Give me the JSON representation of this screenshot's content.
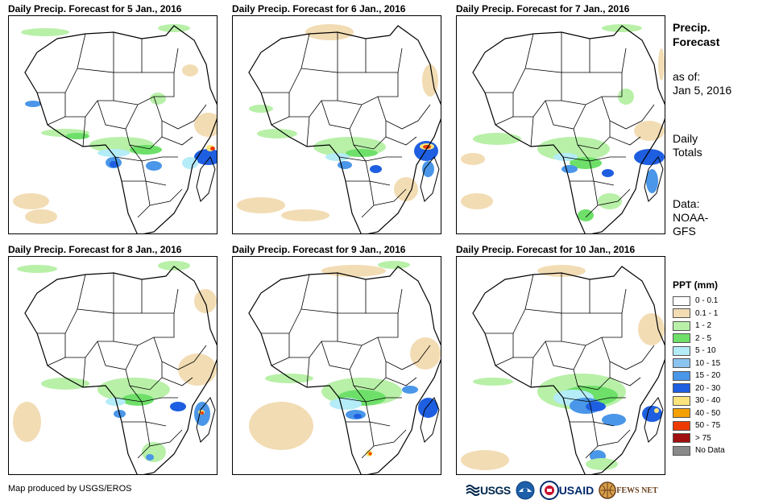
{
  "panels": [
    {
      "title": "Daily Precip. Forecast for 5 Jan., 2016"
    },
    {
      "title": "Daily Precip. Forecast for 6 Jan., 2016"
    },
    {
      "title": "Daily Precip. Forecast for 7 Jan., 2016"
    },
    {
      "title": "Daily Precip. Forecast for 8 Jan., 2016"
    },
    {
      "title": "Daily Precip. Forecast for 9 Jan., 2016"
    },
    {
      "title": "Daily Precip. Forecast for 10 Jan., 2016"
    }
  ],
  "side": {
    "title_line1": "Precip.",
    "title_line2": "Forecast",
    "asof_line1": "as of:",
    "asof_line2": "Jan 5, 2016",
    "totals_line1": "Daily",
    "totals_line2": "Totals",
    "data_line1": "Data:",
    "data_line2": "NOAA-",
    "data_line3": "GFS"
  },
  "legend": {
    "title": "PPT (mm)",
    "items": [
      {
        "label": "0 - 0.1",
        "color": "#ffffff"
      },
      {
        "label": "0.1 - 1",
        "color": "#f2dcb4"
      },
      {
        "label": "1 - 2",
        "color": "#b8f0a8"
      },
      {
        "label": "2 - 5",
        "color": "#6ee06a"
      },
      {
        "label": "5 - 10",
        "color": "#b4ecf8"
      },
      {
        "label": "10 - 15",
        "color": "#8cc4f0"
      },
      {
        "label": "15 - 20",
        "color": "#4a96e8"
      },
      {
        "label": "20 - 30",
        "color": "#1e5ee0"
      },
      {
        "label": "30 - 40",
        "color": "#fce47c"
      },
      {
        "label": "40 - 50",
        "color": "#f4a000"
      },
      {
        "label": "50 - 75",
        "color": "#ee3a00"
      },
      {
        "label": "> 75",
        "color": "#a01010"
      },
      {
        "label": "No Data",
        "color": "#8a8a8a"
      }
    ]
  },
  "credit": "Map produced by USGS/EROS",
  "logos": {
    "usgs": "USGS",
    "usaid": "USAID",
    "fews": "FEWS NET"
  }
}
